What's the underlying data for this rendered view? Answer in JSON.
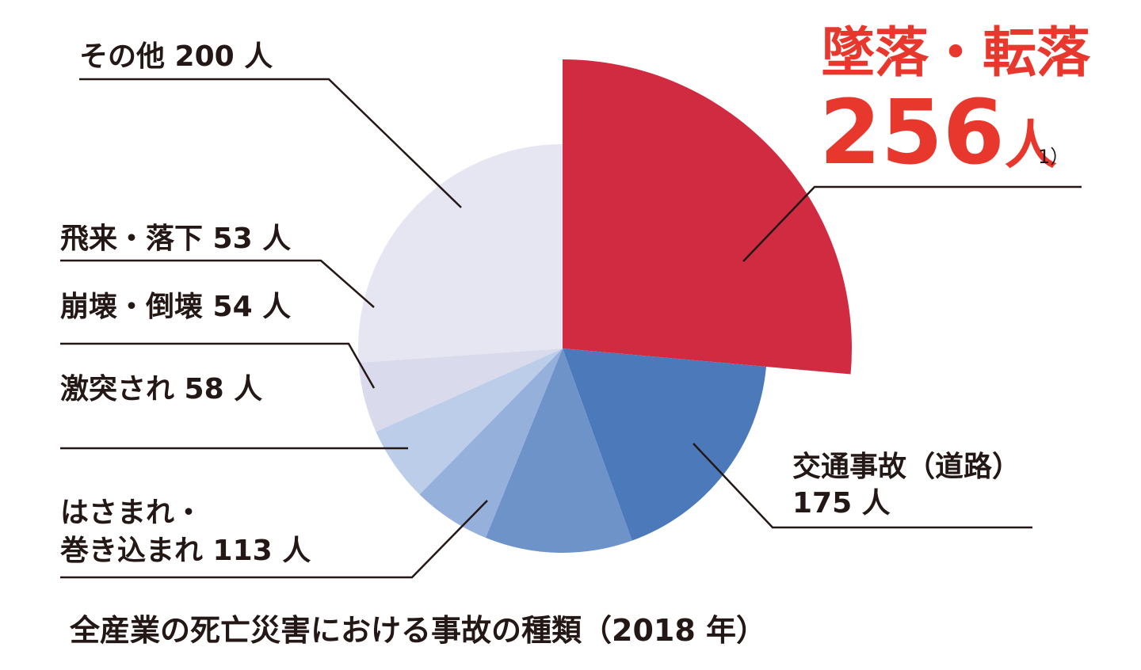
{
  "chart_data": {
    "type": "pie",
    "title": "全産業の死亡災害における事故の種類（2018 年）",
    "unit": "人",
    "slices": [
      {
        "category": "墜落・転落",
        "value": 256,
        "label_value": "256",
        "label_unit": "人",
        "note": "1）",
        "color": "#d12b42"
      },
      {
        "category": "交通事故（道路）",
        "value": 175,
        "label_value": "175 人",
        "color": "#4b79ba"
      },
      {
        "category": "はさまれ・巻き込まれ",
        "label_line1": "はさまれ・",
        "label_line2": "巻き込まれ 113 人",
        "value": 113,
        "color": "#6d93c9"
      },
      {
        "category": "",
        "value": 60,
        "color": "#95b0da"
      },
      {
        "category": "激突され",
        "value": 58,
        "label": "激突され 58 人",
        "color": "#bccde9"
      },
      {
        "category": "崩壊・倒壊",
        "value": 54,
        "label": "崩壊・倒壊 54 人",
        "color": "#d9dbec"
      },
      {
        "category": "飛来・落下",
        "value": 53,
        "label": "飛来・落下 53 人",
        "color": "#e6e5f2"
      },
      {
        "category": "その他",
        "value": 200,
        "label": "その他 200 人",
        "color": "#e6e5f2"
      }
    ]
  }
}
